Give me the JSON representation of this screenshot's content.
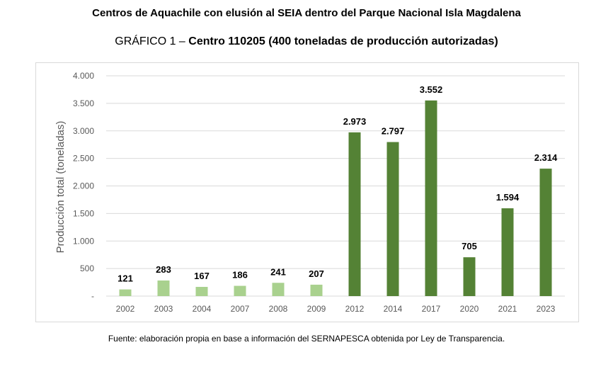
{
  "title": "Centros de Aquachile con elusión al SEIA dentro del Parque Nacional Isla Magdalena",
  "subtitle_prefix": "GRÁFICO 1 – ",
  "subtitle_bold": "Centro 110205 (400 toneladas de producción autorizadas)",
  "source": "Fuente: elaboración propia en base a información del SERNAPESCA obtenida por Ley de Transparencia.",
  "colors": {
    "light_green": "#a9d18e",
    "dark_green": "#548235",
    "grid": "#d9d9d9",
    "axis_text": "#595959"
  },
  "chart_data": {
    "type": "bar",
    "ylabel": "Producción total (toneladas)",
    "ylim": [
      0,
      4000
    ],
    "yticks": [
      0,
      500,
      1000,
      1500,
      2000,
      2500,
      3000,
      3500,
      4000
    ],
    "ytick_labels": [
      "-",
      "500",
      "1.000",
      "1.500",
      "2.000",
      "2.500",
      "3.000",
      "3.500",
      "4.000"
    ],
    "grid": true,
    "categories": [
      "2002",
      "2003",
      "2004",
      "2007",
      "2008",
      "2009",
      "2012",
      "2014",
      "2017",
      "2020",
      "2021",
      "2023"
    ],
    "values": [
      121,
      283,
      167,
      186,
      241,
      207,
      2973,
      2797,
      3552,
      705,
      1594,
      2314
    ],
    "data_labels": [
      "121",
      "283",
      "167",
      "186",
      "241",
      "207",
      "2.973",
      "2.797",
      "3.552",
      "705",
      "1.594",
      "2.314"
    ],
    "bar_colors": [
      "#a9d18e",
      "#a9d18e",
      "#a9d18e",
      "#a9d18e",
      "#a9d18e",
      "#a9d18e",
      "#548235",
      "#548235",
      "#548235",
      "#548235",
      "#548235",
      "#548235"
    ]
  }
}
